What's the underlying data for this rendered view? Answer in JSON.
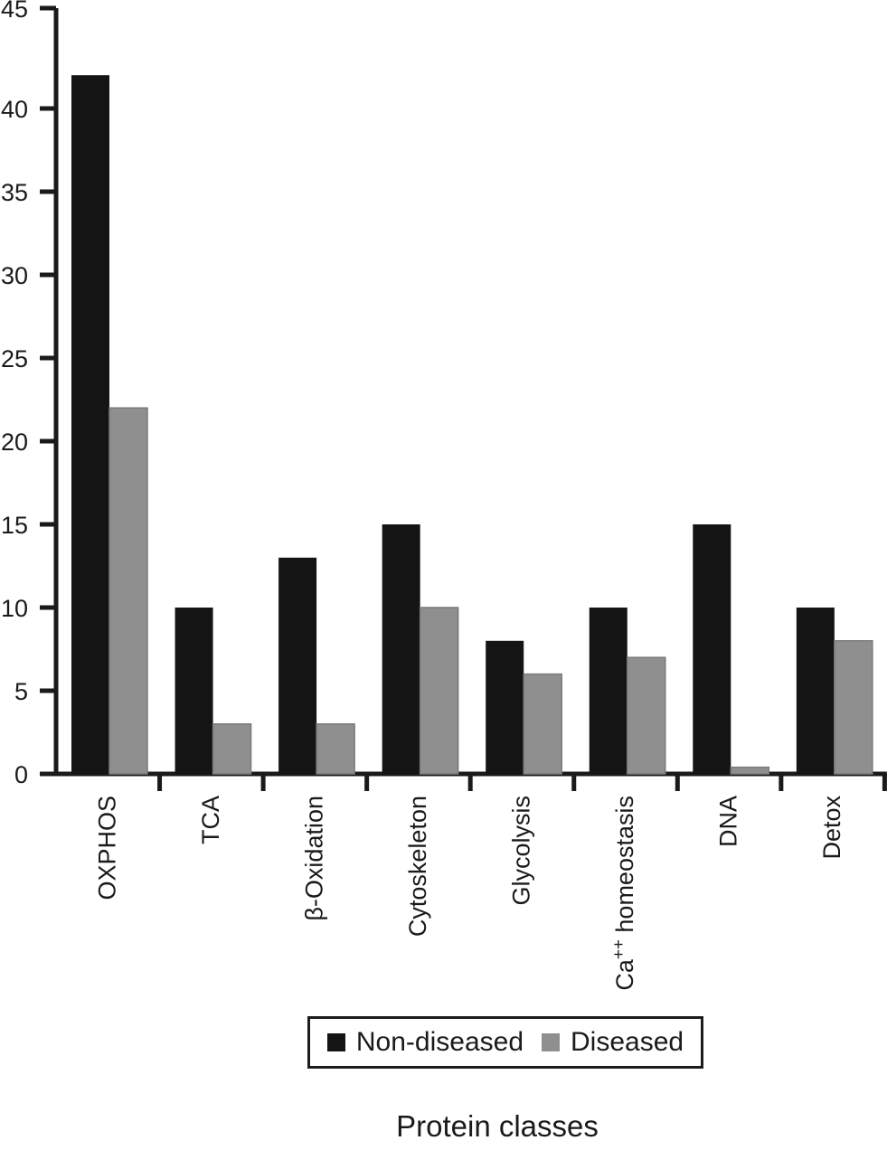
{
  "figure": {
    "background": "#ffffff",
    "text_color": "#1a1a1a"
  },
  "chart_data": {
    "type": "bar",
    "title": "",
    "xlabel": "Protein classes",
    "ylabel": "",
    "categories": [
      "OXPHOS",
      "TCA",
      "β-Oxidation",
      "Cytoskeleton",
      "Glycolysis",
      "Ca++ homeostasis",
      "DNA",
      "Detox"
    ],
    "series": [
      {
        "name": "Non-diseased",
        "color": "#141414",
        "values": [
          42,
          10,
          13,
          15,
          8,
          10,
          15,
          10
        ]
      },
      {
        "name": "Diseased",
        "color": "#8f8f8f",
        "values": [
          22,
          3,
          3,
          10,
          6,
          7,
          0.4,
          8
        ]
      }
    ],
    "ylim": [
      0,
      45
    ],
    "yticks": [
      0,
      5,
      10,
      15,
      20,
      25,
      30,
      35,
      40,
      45
    ],
    "grid": false,
    "legend_position": "bottom",
    "axis_color": "#1a1a1a",
    "category_label_rotation": -90,
    "superscript_token": "++"
  }
}
